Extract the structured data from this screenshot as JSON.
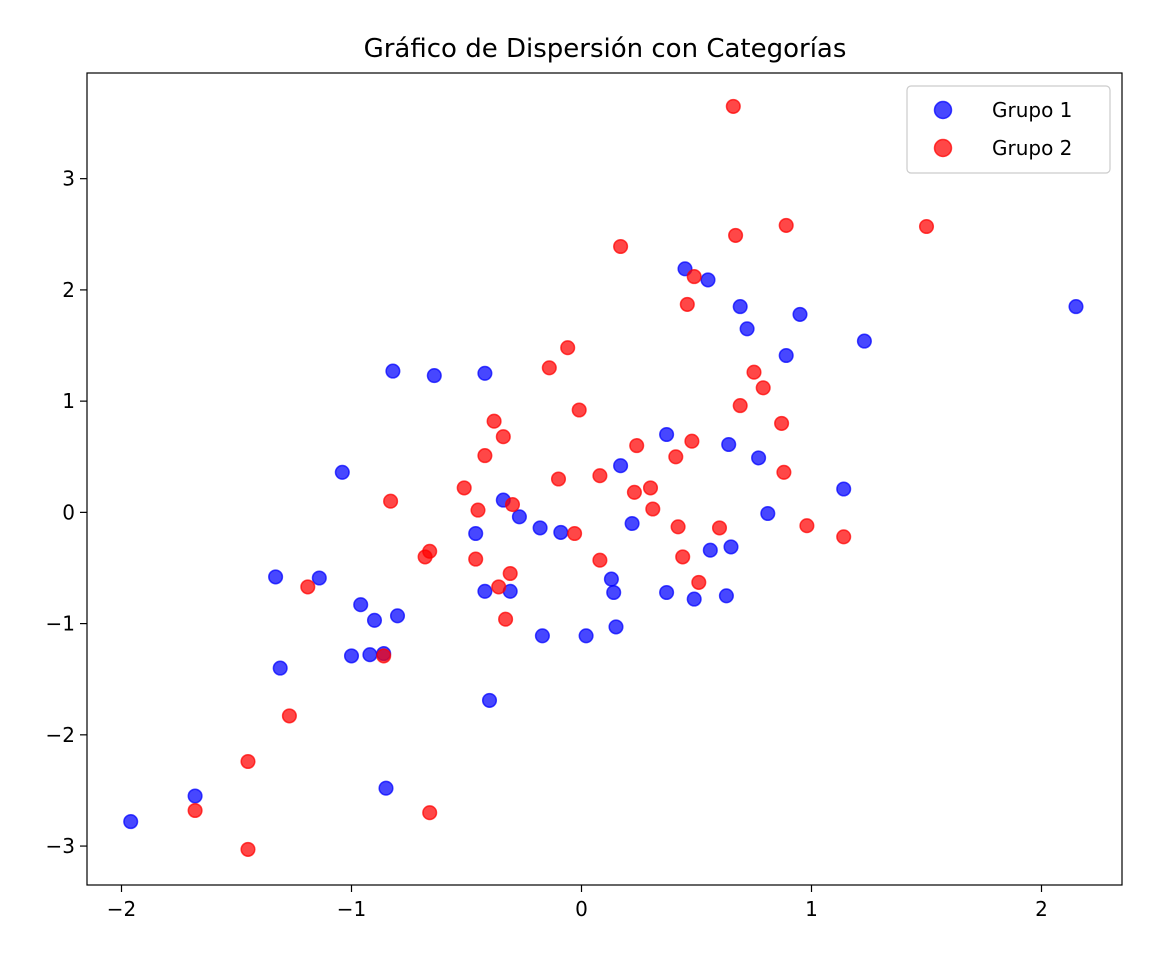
{
  "chart_data": {
    "type": "scatter",
    "title": "Gráfico de Dispersión con Categorías",
    "xlabel": "",
    "ylabel": "",
    "xlim": [
      -2.15,
      2.35
    ],
    "ylim": [
      -3.35,
      3.95
    ],
    "xticks": [
      -2,
      -1,
      0,
      1,
      2
    ],
    "xtick_labels": [
      "−2",
      "−1",
      "0",
      "1",
      "2"
    ],
    "yticks": [
      -3,
      -2,
      -1,
      0,
      1,
      2,
      3
    ],
    "ytick_labels": [
      "−3",
      "−2",
      "−1",
      "0",
      "1",
      "2",
      "3"
    ],
    "grid": false,
    "legend_position": "top-right",
    "series": [
      {
        "name": "Grupo 1",
        "color": "#0000ff",
        "points": [
          [
            -1.96,
            -2.78
          ],
          [
            -1.68,
            -2.55
          ],
          [
            -1.33,
            -0.58
          ],
          [
            -1.31,
            -1.4
          ],
          [
            -1.14,
            -0.59
          ],
          [
            -1.04,
            0.36
          ],
          [
            -1.0,
            -1.29
          ],
          [
            -0.96,
            -0.83
          ],
          [
            -0.92,
            -1.28
          ],
          [
            -0.9,
            -0.97
          ],
          [
            -0.86,
            -1.27
          ],
          [
            -0.85,
            -2.48
          ],
          [
            -0.82,
            1.27
          ],
          [
            -0.8,
            -0.93
          ],
          [
            -0.64,
            1.23
          ],
          [
            -0.46,
            -0.19
          ],
          [
            -0.42,
            1.25
          ],
          [
            -0.42,
            -0.71
          ],
          [
            -0.4,
            -1.69
          ],
          [
            -0.34,
            0.11
          ],
          [
            -0.31,
            -0.71
          ],
          [
            -0.27,
            -0.04
          ],
          [
            -0.18,
            -0.14
          ],
          [
            -0.17,
            -1.11
          ],
          [
            -0.09,
            -0.18
          ],
          [
            0.02,
            -1.11
          ],
          [
            0.13,
            -0.6
          ],
          [
            0.14,
            -0.72
          ],
          [
            0.15,
            -1.03
          ],
          [
            0.17,
            0.42
          ],
          [
            0.22,
            -0.1
          ],
          [
            0.37,
            0.7
          ],
          [
            0.37,
            -0.72
          ],
          [
            0.45,
            2.19
          ],
          [
            0.49,
            -0.78
          ],
          [
            0.55,
            2.09
          ],
          [
            0.56,
            -0.34
          ],
          [
            0.63,
            -0.75
          ],
          [
            0.64,
            0.61
          ],
          [
            0.65,
            -0.31
          ],
          [
            0.69,
            1.85
          ],
          [
            0.72,
            1.65
          ],
          [
            0.77,
            0.49
          ],
          [
            0.81,
            -0.01
          ],
          [
            0.89,
            1.41
          ],
          [
            0.95,
            1.78
          ],
          [
            1.14,
            0.21
          ],
          [
            1.23,
            1.54
          ],
          [
            2.15,
            1.85
          ]
        ]
      },
      {
        "name": "Grupo 2",
        "color": "#ff0000",
        "points": [
          [
            -1.68,
            -2.68
          ],
          [
            -1.45,
            -2.24
          ],
          [
            -1.45,
            -3.03
          ],
          [
            -1.27,
            -1.83
          ],
          [
            -1.19,
            -0.67
          ],
          [
            -0.86,
            -1.29
          ],
          [
            -0.83,
            0.1
          ],
          [
            -0.68,
            -0.4
          ],
          [
            -0.66,
            -0.35
          ],
          [
            -0.66,
            -2.7
          ],
          [
            -0.51,
            0.22
          ],
          [
            -0.46,
            -0.42
          ],
          [
            -0.45,
            0.02
          ],
          [
            -0.42,
            0.51
          ],
          [
            -0.38,
            0.82
          ],
          [
            -0.36,
            -0.67
          ],
          [
            -0.34,
            0.68
          ],
          [
            -0.33,
            -0.96
          ],
          [
            -0.31,
            -0.55
          ],
          [
            -0.3,
            0.07
          ],
          [
            -0.14,
            1.3
          ],
          [
            -0.1,
            0.3
          ],
          [
            -0.06,
            1.48
          ],
          [
            -0.03,
            -0.19
          ],
          [
            -0.01,
            0.92
          ],
          [
            0.08,
            -0.43
          ],
          [
            0.08,
            0.33
          ],
          [
            0.17,
            2.39
          ],
          [
            0.23,
            0.18
          ],
          [
            0.24,
            0.6
          ],
          [
            0.3,
            0.22
          ],
          [
            0.31,
            0.03
          ],
          [
            0.41,
            0.5
          ],
          [
            0.42,
            -0.13
          ],
          [
            0.44,
            -0.4
          ],
          [
            0.46,
            1.87
          ],
          [
            0.48,
            0.64
          ],
          [
            0.49,
            2.12
          ],
          [
            0.51,
            -0.63
          ],
          [
            0.6,
            -0.14
          ],
          [
            0.66,
            3.65
          ],
          [
            0.67,
            2.49
          ],
          [
            0.69,
            0.96
          ],
          [
            0.75,
            1.26
          ],
          [
            0.79,
            1.12
          ],
          [
            0.87,
            0.8
          ],
          [
            0.88,
            0.36
          ],
          [
            0.89,
            2.58
          ],
          [
            0.98,
            -0.12
          ],
          [
            1.14,
            -0.22
          ],
          [
            1.5,
            2.57
          ]
        ]
      }
    ]
  }
}
